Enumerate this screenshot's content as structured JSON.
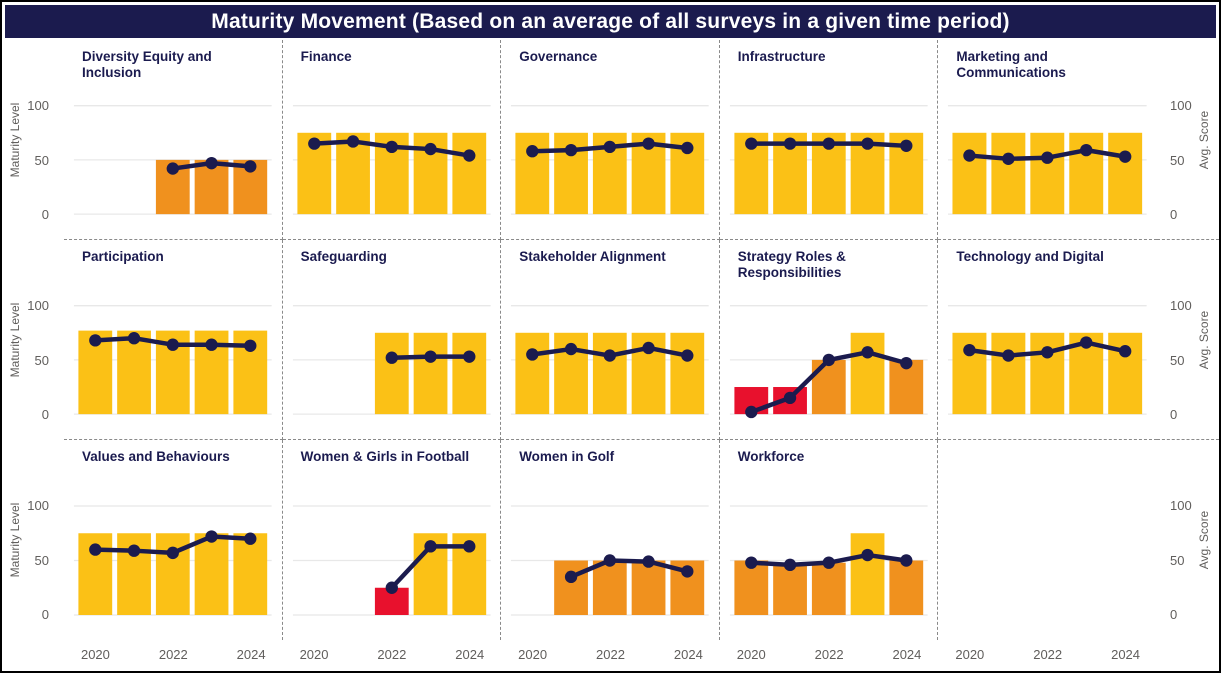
{
  "title": "Maturity Movement (Based on an average of all surveys in a given time period)",
  "colors": {
    "header_bg": "#1B1B4E",
    "header_text": "#FFFFFF",
    "facet_title": "#1B1B4F",
    "line": "#1B1B4E",
    "bar_yellow": "#FBC116",
    "bar_orange": "#F0911E",
    "bar_red": "#E8112D",
    "gridline": "#E8E8E8",
    "axis_text": "#605E5C",
    "separator": "#8A8A8A",
    "border": "#000000"
  },
  "axes": {
    "left_label": "Maturity Level",
    "right_label": "Avg. Score",
    "y_ticks": [
      "100",
      "50",
      "0"
    ],
    "x_tick_labels": [
      "2020",
      "2022",
      "2024"
    ]
  },
  "chart_data": {
    "type": "bar",
    "note": "small multiples, clustered column (Avg. Score by year) with overlaid line (Maturity Level); null = no survey that year",
    "x": [
      2020,
      2021,
      2022,
      2023,
      2024
    ],
    "ylim": [
      0,
      100
    ],
    "facets": [
      {
        "title": "Diversity Equity and Inclusion",
        "bars": [
          null,
          null,
          50,
          50,
          50
        ],
        "bar_colors": [
          null,
          null,
          "orange",
          "orange",
          "orange"
        ],
        "line": [
          null,
          null,
          42,
          47,
          44
        ]
      },
      {
        "title": "Finance",
        "bars": [
          75,
          75,
          75,
          75,
          75
        ],
        "bar_colors": [
          "yellow",
          "yellow",
          "yellow",
          "yellow",
          "yellow"
        ],
        "line": [
          65,
          67,
          62,
          60,
          54
        ]
      },
      {
        "title": "Governance",
        "bars": [
          75,
          75,
          75,
          75,
          75
        ],
        "bar_colors": [
          "yellow",
          "yellow",
          "yellow",
          "yellow",
          "yellow"
        ],
        "line": [
          58,
          59,
          62,
          65,
          61
        ]
      },
      {
        "title": "Infrastructure",
        "bars": [
          75,
          75,
          75,
          75,
          75
        ],
        "bar_colors": [
          "yellow",
          "yellow",
          "yellow",
          "yellow",
          "yellow"
        ],
        "line": [
          65,
          65,
          65,
          65,
          63
        ]
      },
      {
        "title": "Marketing and Communications",
        "bars": [
          75,
          75,
          75,
          75,
          75
        ],
        "bar_colors": [
          "yellow",
          "yellow",
          "yellow",
          "yellow",
          "yellow"
        ],
        "line": [
          54,
          51,
          52,
          59,
          53
        ]
      },
      {
        "title": "Participation",
        "bars": [
          77,
          77,
          77,
          77,
          77
        ],
        "bar_colors": [
          "yellow",
          "yellow",
          "yellow",
          "yellow",
          "yellow"
        ],
        "line": [
          68,
          70,
          64,
          64,
          63
        ]
      },
      {
        "title": "Safeguarding",
        "bars": [
          null,
          null,
          75,
          75,
          75
        ],
        "bar_colors": [
          null,
          null,
          "yellow",
          "yellow",
          "yellow"
        ],
        "line": [
          null,
          null,
          52,
          53,
          53
        ]
      },
      {
        "title": "Stakeholder Alignment",
        "bars": [
          75,
          75,
          75,
          75,
          75
        ],
        "bar_colors": [
          "yellow",
          "yellow",
          "yellow",
          "yellow",
          "yellow"
        ],
        "line": [
          55,
          60,
          54,
          61,
          54
        ]
      },
      {
        "title": "Strategy Roles & Responsibilities",
        "bars": [
          25,
          25,
          50,
          75,
          50
        ],
        "bar_colors": [
          "red",
          "red",
          "orange",
          "yellow",
          "orange"
        ],
        "line": [
          2,
          15,
          50,
          57,
          47
        ]
      },
      {
        "title": "Technology and Digital",
        "bars": [
          75,
          75,
          75,
          75,
          75
        ],
        "bar_colors": [
          "yellow",
          "yellow",
          "yellow",
          "yellow",
          "yellow"
        ],
        "line": [
          59,
          54,
          57,
          66,
          58
        ]
      },
      {
        "title": "Values and Behaviours",
        "bars": [
          75,
          75,
          75,
          75,
          75
        ],
        "bar_colors": [
          "yellow",
          "yellow",
          "yellow",
          "yellow",
          "yellow"
        ],
        "line": [
          60,
          59,
          57,
          72,
          70
        ]
      },
      {
        "title": "Women & Girls in Football",
        "bars": [
          null,
          null,
          25,
          75,
          75
        ],
        "bar_colors": [
          null,
          null,
          "red",
          "yellow",
          "yellow"
        ],
        "line": [
          null,
          null,
          25,
          63,
          63
        ]
      },
      {
        "title": "Women in Golf",
        "bars": [
          null,
          50,
          50,
          50,
          50
        ],
        "bar_colors": [
          null,
          "orange",
          "orange",
          "orange",
          "orange"
        ],
        "line": [
          null,
          35,
          50,
          49,
          40
        ]
      },
      {
        "title": "Workforce",
        "bars": [
          50,
          47,
          48,
          75,
          50
        ],
        "bar_colors": [
          "orange",
          "orange",
          "orange",
          "yellow",
          "orange"
        ],
        "line": [
          48,
          46,
          48,
          55,
          50
        ]
      },
      {
        "title": "",
        "empty": true,
        "bars": [
          null,
          null,
          null,
          null,
          null
        ],
        "bar_colors": [
          null,
          null,
          null,
          null,
          null
        ],
        "line": [
          null,
          null,
          null,
          null,
          null
        ]
      }
    ]
  }
}
